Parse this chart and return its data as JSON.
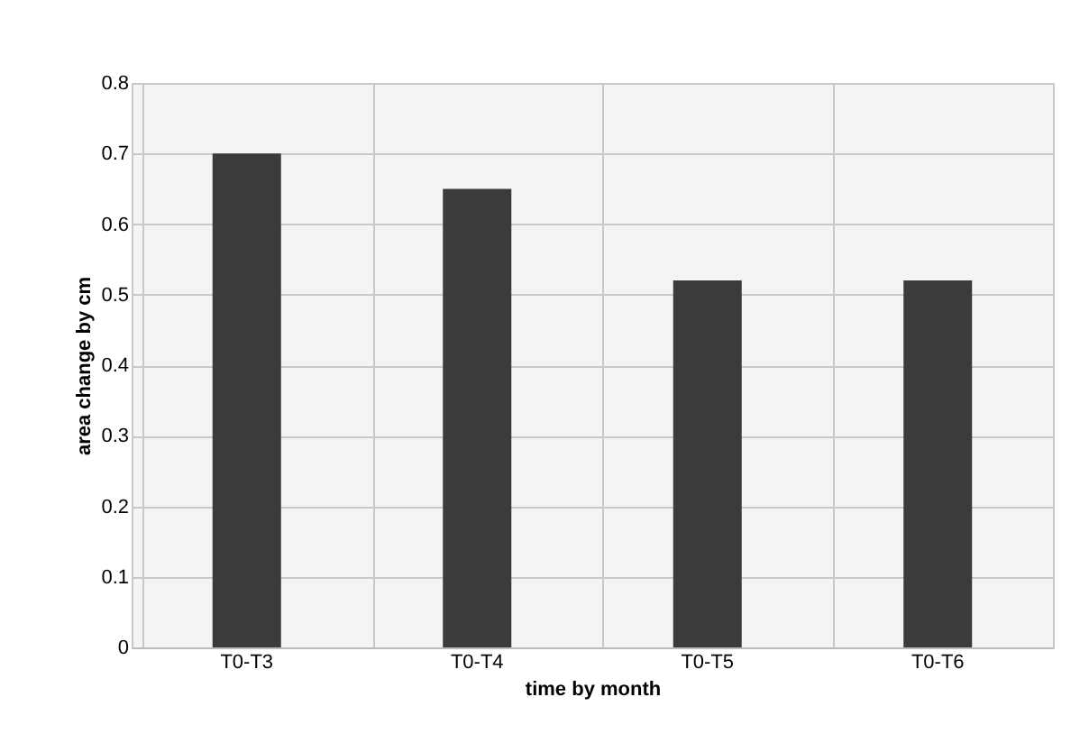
{
  "chart_data": {
    "type": "bar",
    "xlabel": "time by month",
    "ylabel": "area change by cm",
    "categories": [
      "T0-T3",
      "T0-T4",
      "T0-T5",
      "T0-T6"
    ],
    "values": [
      0.7,
      0.65,
      0.52,
      0.52
    ],
    "color": "#3b3b3b",
    "ylim": [
      0,
      0.8
    ],
    "yticks": [
      0,
      0.1,
      0.2,
      0.3,
      0.4,
      0.5,
      0.6,
      0.7,
      0.8
    ],
    "grid": true
  }
}
